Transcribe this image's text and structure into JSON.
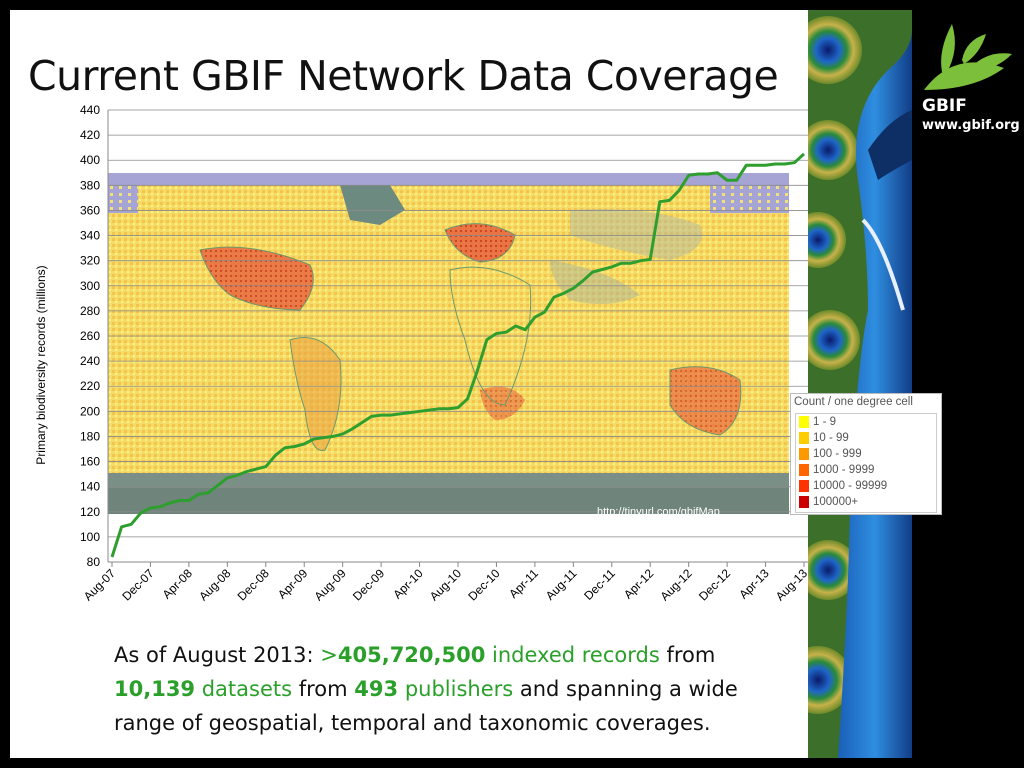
{
  "slide": {
    "title": "Current GBIF Network Data Coverage",
    "caption": {
      "lead": "As of August 2013:   ",
      "records_prefix": ">",
      "records": "405,720,500",
      "records_label": " indexed records",
      "from1": " from ",
      "datasets": "10,139",
      "datasets_label": " datasets",
      "from2": " from ",
      "publishers": "493",
      "publishers_label": " publishers",
      "rest": " and spanning a wide range of geospatial, temporal and taxonomic coverages."
    }
  },
  "logo": {
    "name": "GBIF",
    "url": "www.gbif.org",
    "icon": "gbif-leaf-logo"
  },
  "map": {
    "url_label": "http://tinyurl.com/gbifMap",
    "legend_title": "Count / one degree cell",
    "legend_items": [
      {
        "label": "1 - 9",
        "color": "#ffff00"
      },
      {
        "label": "10 - 99",
        "color": "#ffcc00"
      },
      {
        "label": "100 - 999",
        "color": "#ff9900"
      },
      {
        "label": "1000 - 9999",
        "color": "#ff6600"
      },
      {
        "label": "10000 - 99999",
        "color": "#ff3300"
      },
      {
        "label": "100000+",
        "color": "#cc0000"
      }
    ]
  },
  "chart_data": {
    "type": "line",
    "ylabel": "Primary biodiversity records (millions)",
    "ylim": [
      80,
      440
    ],
    "yticks": [
      80,
      100,
      120,
      140,
      160,
      180,
      200,
      220,
      240,
      260,
      280,
      300,
      320,
      340,
      360,
      380,
      400,
      420,
      440
    ],
    "x_tick_labels": [
      "Aug-07",
      "Dec-07",
      "Apr-08",
      "Aug-08",
      "Dec-08",
      "Apr-09",
      "Aug-09",
      "Dec-09",
      "Apr-10",
      "Aug-10",
      "Dec-10",
      "Apr-11",
      "Aug-11",
      "Dec-11",
      "Apr-12",
      "Aug-12",
      "Dec-12",
      "Apr-13",
      "Aug-13"
    ],
    "line_color": "#2e9e2e",
    "series": [
      {
        "x_months": [
          0,
          1,
          2,
          3,
          4,
          5,
          6,
          7,
          8,
          9,
          10,
          11,
          12,
          13,
          14,
          15,
          16,
          17,
          18,
          19,
          20,
          21,
          22,
          23,
          24,
          25,
          26,
          27,
          28,
          29,
          30,
          31,
          32,
          33,
          34,
          35,
          36,
          37,
          38,
          39,
          40,
          41,
          42,
          43,
          44,
          45,
          46,
          47,
          48,
          49,
          50,
          51,
          52,
          53,
          54,
          55,
          56,
          57,
          58,
          59,
          60,
          61,
          62,
          63,
          64,
          65,
          66,
          67,
          68,
          69,
          70,
          71,
          72
        ],
        "values": [
          84,
          108,
          110,
          119,
          123,
          124,
          127,
          129,
          129,
          134,
          135,
          141,
          147,
          149,
          152,
          154,
          156,
          165,
          171,
          172,
          174,
          178,
          179,
          180,
          182,
          186,
          191,
          196,
          197,
          197,
          198,
          199,
          200,
          201,
          202,
          202,
          203,
          210,
          232,
          257,
          262,
          263,
          268,
          265,
          275,
          279,
          291,
          294,
          298,
          304,
          311,
          313,
          315,
          318,
          318,
          320,
          321,
          367,
          368,
          376,
          388,
          389,
          389,
          390,
          384,
          384,
          396,
          396,
          396,
          397,
          397,
          398,
          405
        ]
      }
    ]
  }
}
